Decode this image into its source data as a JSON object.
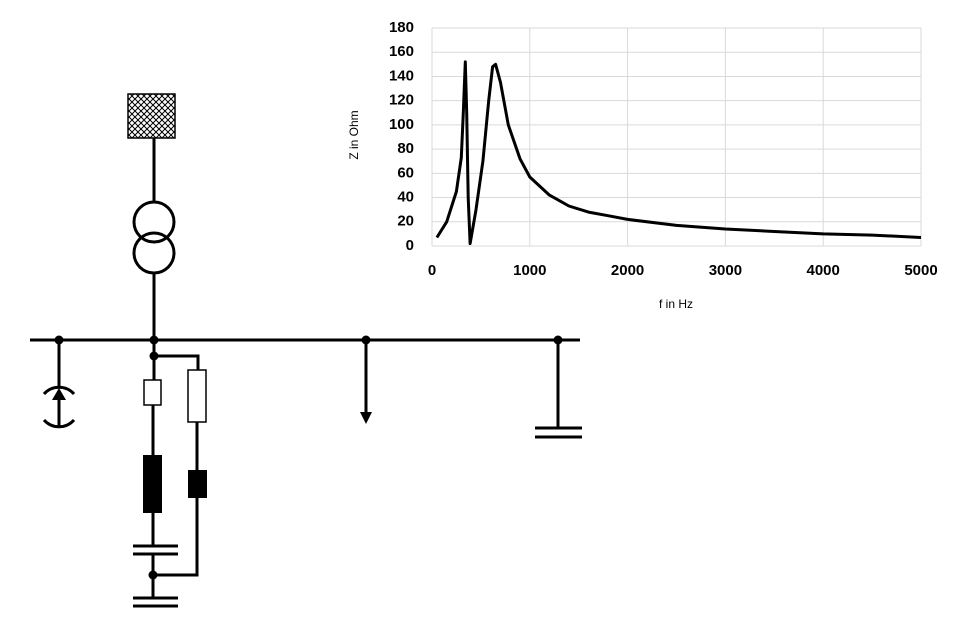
{
  "chart_data": {
    "type": "line",
    "x_label": "f in Hz",
    "y_label": "Z in Ohm",
    "x": [
      50,
      150,
      250,
      300,
      320,
      340,
      355,
      370,
      390,
      450,
      520,
      580,
      620,
      650,
      700,
      780,
      900,
      1000,
      1200,
      1400,
      1600,
      1800,
      2000,
      2500,
      3000,
      3500,
      4000,
      4500,
      5000
    ],
    "values": [
      7,
      20,
      45,
      73,
      110,
      152,
      110,
      40,
      2,
      30,
      70,
      120,
      148,
      150,
      135,
      100,
      72,
      57,
      42,
      33,
      28,
      25,
      22,
      17,
      14,
      12,
      10,
      9,
      7
    ],
    "color": "#000000",
    "xlim": [
      0,
      5000
    ],
    "xticks": [
      0,
      1000,
      2000,
      3000,
      4000,
      5000
    ],
    "ylim": [
      0,
      180
    ],
    "yticks": [
      0,
      20,
      40,
      60,
      80,
      100,
      120,
      140,
      160,
      180
    ],
    "grid": true
  }
}
